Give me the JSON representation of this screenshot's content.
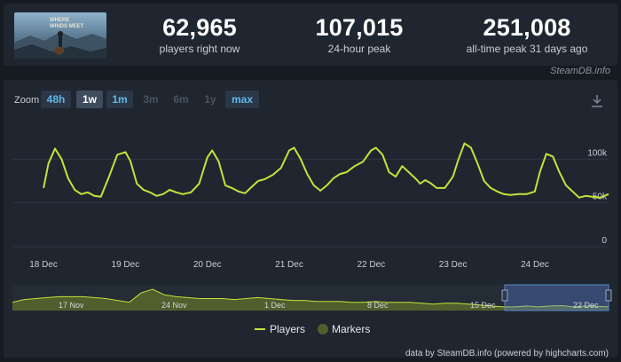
{
  "stats": [
    {
      "value": "62,965",
      "label": "players right now"
    },
    {
      "value": "107,015",
      "label": "24-hour peak"
    },
    {
      "value": "251,008",
      "label": "all-time peak 31 days ago"
    }
  ],
  "credit": "SteamDB.info",
  "zoom": {
    "label": "Zoom",
    "buttons": [
      {
        "label": "48h",
        "state": "active"
      },
      {
        "label": "1w",
        "state": "selected"
      },
      {
        "label": "1m",
        "state": "active"
      },
      {
        "label": "3m",
        "state": "disabled"
      },
      {
        "label": "6m",
        "state": "disabled"
      },
      {
        "label": "1y",
        "state": "disabled"
      },
      {
        "label": "max",
        "state": "active"
      }
    ]
  },
  "legend": {
    "players": "Players",
    "markers": "Markers"
  },
  "footer": "data by SteamDB.info (powered by highcharts.com)",
  "colors": {
    "line": "#c6e23a",
    "marker": "#4f5f2d",
    "background": "#1f2630"
  },
  "chart_data": {
    "type": "line",
    "series": [
      {
        "name": "Players",
        "x": [
          0.0,
          0.06,
          0.14,
          0.22,
          0.3,
          0.38,
          0.46,
          0.54,
          0.62,
          0.7,
          0.8,
          0.9,
          1.0,
          1.06,
          1.14,
          1.22,
          1.3,
          1.38,
          1.46,
          1.54,
          1.62,
          1.7,
          1.8,
          1.9,
          2.0,
          2.06,
          2.14,
          2.22,
          2.3,
          2.38,
          2.46,
          2.54,
          2.62,
          2.7,
          2.8,
          2.9,
          3.0,
          3.06,
          3.14,
          3.22,
          3.3,
          3.38,
          3.46,
          3.54,
          3.62,
          3.7,
          3.8,
          3.9,
          4.0,
          4.06,
          4.14,
          4.22,
          4.3,
          4.38,
          4.46,
          4.54,
          4.6,
          4.66,
          4.72,
          4.8,
          4.9,
          5.0,
          5.06,
          5.14,
          5.22,
          5.3,
          5.38,
          5.46,
          5.54,
          5.62,
          5.7,
          5.8,
          5.9,
          6.0,
          6.06,
          6.14,
          6.22,
          6.3,
          6.38,
          6.46,
          6.54,
          6.62,
          6.7,
          6.8,
          6.9
        ],
        "values": [
          67000,
          95000,
          112000,
          100000,
          78000,
          65000,
          60000,
          62000,
          58000,
          57000,
          80000,
          105000,
          108000,
          98000,
          72000,
          65000,
          62000,
          58000,
          60000,
          65000,
          62000,
          60000,
          62000,
          72000,
          102000,
          110000,
          97000,
          70000,
          67000,
          63000,
          61000,
          68000,
          75000,
          77000,
          82000,
          90000,
          110000,
          113000,
          100000,
          83000,
          70000,
          64000,
          70000,
          78000,
          83000,
          85000,
          92000,
          97000,
          110000,
          113000,
          105000,
          85000,
          80000,
          92000,
          85000,
          78000,
          72000,
          76000,
          73000,
          67000,
          67000,
          80000,
          98000,
          118000,
          113000,
          95000,
          75000,
          67000,
          63000,
          60000,
          59000,
          60000,
          60000,
          63000,
          85000,
          106000,
          103000,
          85000,
          70000,
          63000,
          56000,
          58000,
          57000,
          56000,
          60000
        ]
      }
    ],
    "x_tick_labels": [
      "18 Dec",
      "19 Dec",
      "20 Dec",
      "21 Dec",
      "22 Dec",
      "23 Dec",
      "24 Dec"
    ],
    "y_tick_labels": [
      "0",
      "50k",
      "100k"
    ],
    "y_ticks": [
      0,
      50000,
      100000
    ],
    "ylim": [
      0,
      150000
    ],
    "xlim": [
      -0.38,
      6.9
    ],
    "navigator": {
      "labels": [
        "17 Nov",
        "24 Nov",
        "1 Dec",
        "8 Dec",
        "15 Dec",
        "22 Dec"
      ],
      "values": [
        0.3,
        0.45,
        0.5,
        0.55,
        0.6,
        0.6,
        0.6,
        0.55,
        0.5,
        0.4,
        0.3,
        0.8,
        1.0,
        0.7,
        0.6,
        0.55,
        0.5,
        0.5,
        0.5,
        0.45,
        0.5,
        0.55,
        0.5,
        0.45,
        0.4,
        0.4,
        0.35,
        0.35,
        0.35,
        0.3,
        0.3,
        0.35,
        0.3,
        0.3,
        0.3,
        0.25,
        0.2,
        0.25,
        0.25,
        0.2,
        0.15,
        0.1,
        0.05,
        0.05,
        0.1,
        0.05,
        0.1,
        0.12,
        0.05,
        0.1,
        0.08,
        0.05
      ]
    },
    "grid": true,
    "legend_position": "bottom-center"
  }
}
